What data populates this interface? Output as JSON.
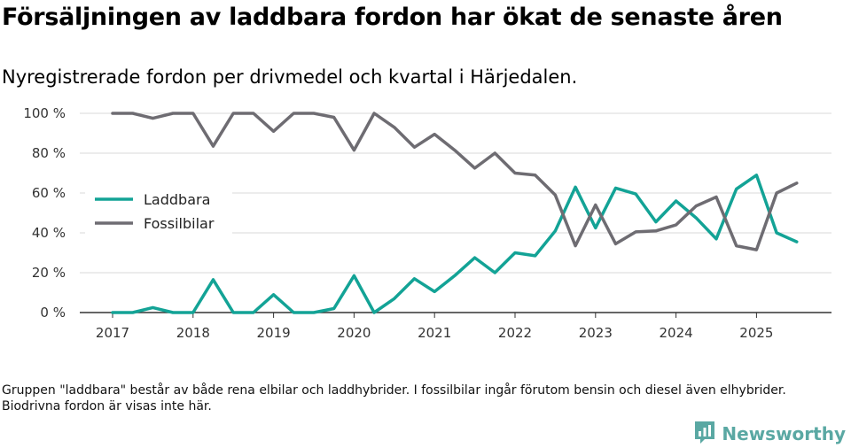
{
  "header": {
    "title": "Försäljningen av laddbara fordon har ökat de senaste åren",
    "subtitle": "Nyregistrerade fordon per drivmedel och kvartal i Härjedalen."
  },
  "footnote": "Gruppen \"laddbara\" består av både rena elbilar och laddhybrider. I fossilbilar ingår förutom bensin och diesel även elhybrider. Biodrivna fordon är visas inte här.",
  "brand": {
    "name": "Newsworthy"
  },
  "colors": {
    "laddbara": "#13a396",
    "fossil": "#6e6c72",
    "grid": "#d9d9d9",
    "axis": "#333333"
  },
  "chart_data": {
    "type": "line",
    "title": "Försäljningen av laddbara fordon har ökat de senaste åren",
    "xlabel": "",
    "ylabel": "",
    "ylim": [
      0,
      100
    ],
    "xlim": [
      2017,
      2025.75
    ],
    "yticks": [
      0,
      20,
      40,
      60,
      80,
      100
    ],
    "ytick_labels": [
      "0 %",
      "20 %",
      "40 %",
      "60 %",
      "80 %",
      "100 %"
    ],
    "xticks": [
      2017,
      2018,
      2019,
      2020,
      2021,
      2022,
      2023,
      2024,
      2025
    ],
    "xtick_labels": [
      "2017",
      "2018",
      "2019",
      "2020",
      "2021",
      "2022",
      "2023",
      "2024",
      "2025"
    ],
    "legend_position": "left-center",
    "x": [
      2017,
      2017.25,
      2017.5,
      2017.75,
      2018,
      2018.25,
      2018.5,
      2018.75,
      2019,
      2019.25,
      2019.5,
      2019.75,
      2020,
      2020.25,
      2020.5,
      2020.75,
      2021,
      2021.25,
      2021.5,
      2021.75,
      2022,
      2022.25,
      2022.5,
      2022.75,
      2023,
      2023.25,
      2023.5,
      2023.75,
      2024,
      2024.25,
      2024.5,
      2024.75,
      2025,
      2025.25,
      2025.5
    ],
    "series": [
      {
        "name": "Laddbara",
        "color_key": "laddbara",
        "values": [
          0,
          0,
          2.5,
          0,
          0,
          16.5,
          0,
          0,
          9,
          0,
          0,
          2,
          18.5,
          0,
          7,
          17,
          10.5,
          18.5,
          27.5,
          20,
          30,
          28.5,
          41,
          63,
          42.5,
          62.5,
          59.5,
          45.5,
          56,
          47.5,
          37,
          62,
          69,
          40,
          35.5
        ]
      },
      {
        "name": "Fossilbilar",
        "color_key": "fossil",
        "values": [
          100,
          100,
          97.5,
          100,
          100,
          83.5,
          100,
          100,
          91,
          100,
          100,
          98,
          81.5,
          100,
          93,
          83,
          89.5,
          81.5,
          72.5,
          80,
          70,
          69,
          59,
          33.5,
          54,
          34.5,
          40.5,
          41,
          44,
          53.5,
          58,
          33.5,
          31.5,
          60,
          65
        ]
      }
    ]
  }
}
